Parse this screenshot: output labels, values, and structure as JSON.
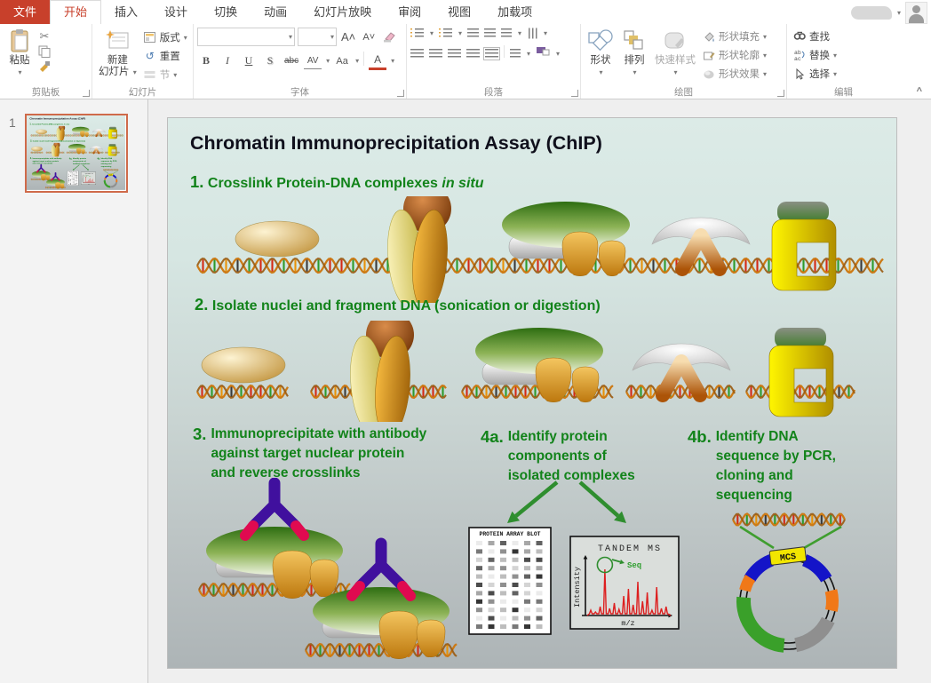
{
  "ribbon": {
    "tabs": [
      "文件",
      "开始",
      "插入",
      "设计",
      "切换",
      "动画",
      "幻灯片放映",
      "审阅",
      "视图",
      "加载项"
    ],
    "groups": {
      "clipboard": {
        "label": "剪贴板",
        "paste": "粘贴"
      },
      "slides": {
        "label": "幻灯片",
        "new1": "新建",
        "new2": "幻灯片",
        "layout": "版式",
        "reset": "重置",
        "section": "节"
      },
      "font": {
        "label": "字体",
        "buttons": [
          "B",
          "I",
          "U",
          "S",
          "abc",
          "AV",
          "Aa",
          "A"
        ]
      },
      "paragraph": {
        "label": "段落"
      },
      "drawing": {
        "label": "绘图",
        "shapes": "形状",
        "arrange": "排列",
        "quick": "快速样式",
        "fill": "形状填充",
        "outline": "形状轮廓",
        "effects": "形状效果"
      },
      "editing": {
        "label": "编辑",
        "find": "查找",
        "replace": "替换",
        "select": "选择"
      }
    }
  },
  "icons": {
    "dropdown": "▾",
    "scissors": "✂",
    "reset_arrow": "↺",
    "collapse": "^"
  },
  "thumbnails": {
    "slide_number": "1"
  },
  "slide": {
    "title": "Chromatin Immunoprecipitation Assay (ChIP)",
    "steps": {
      "s1": {
        "num": "1.",
        "text": "Crosslink Protein-DNA complexes",
        "italic": "in situ"
      },
      "s2": {
        "num": "2.",
        "text": "Isolate nuclei  and fragment DNA (sonication or digestion)"
      },
      "s3": {
        "num": "3.",
        "lines": [
          "Immunoprecipitate with antibody",
          "against target nuclear protein",
          "and reverse crosslinks"
        ]
      },
      "s4a": {
        "num": "4a.",
        "lines": [
          "Identify  protein",
          "components of",
          "isolated complexes"
        ]
      },
      "s4b": {
        "num": "4b.",
        "lines": [
          "Identify  DNA",
          "sequence by PCR,",
          "cloning and",
          "sequencing"
        ]
      }
    },
    "figures": {
      "blot_title": "PROTEIN ARRAY BLOT",
      "ms_title": "TANDEM MS",
      "ms_ylabel": "Intensity",
      "ms_xlabel": "m/z",
      "ms_seq": "Seq",
      "plasmid_mcs": "MCS"
    },
    "colors": {
      "step_green": "#12831a",
      "accent_red": "#c8402b",
      "antibody_purple": "#40109e",
      "antibody_tip": "#e00a50"
    }
  }
}
